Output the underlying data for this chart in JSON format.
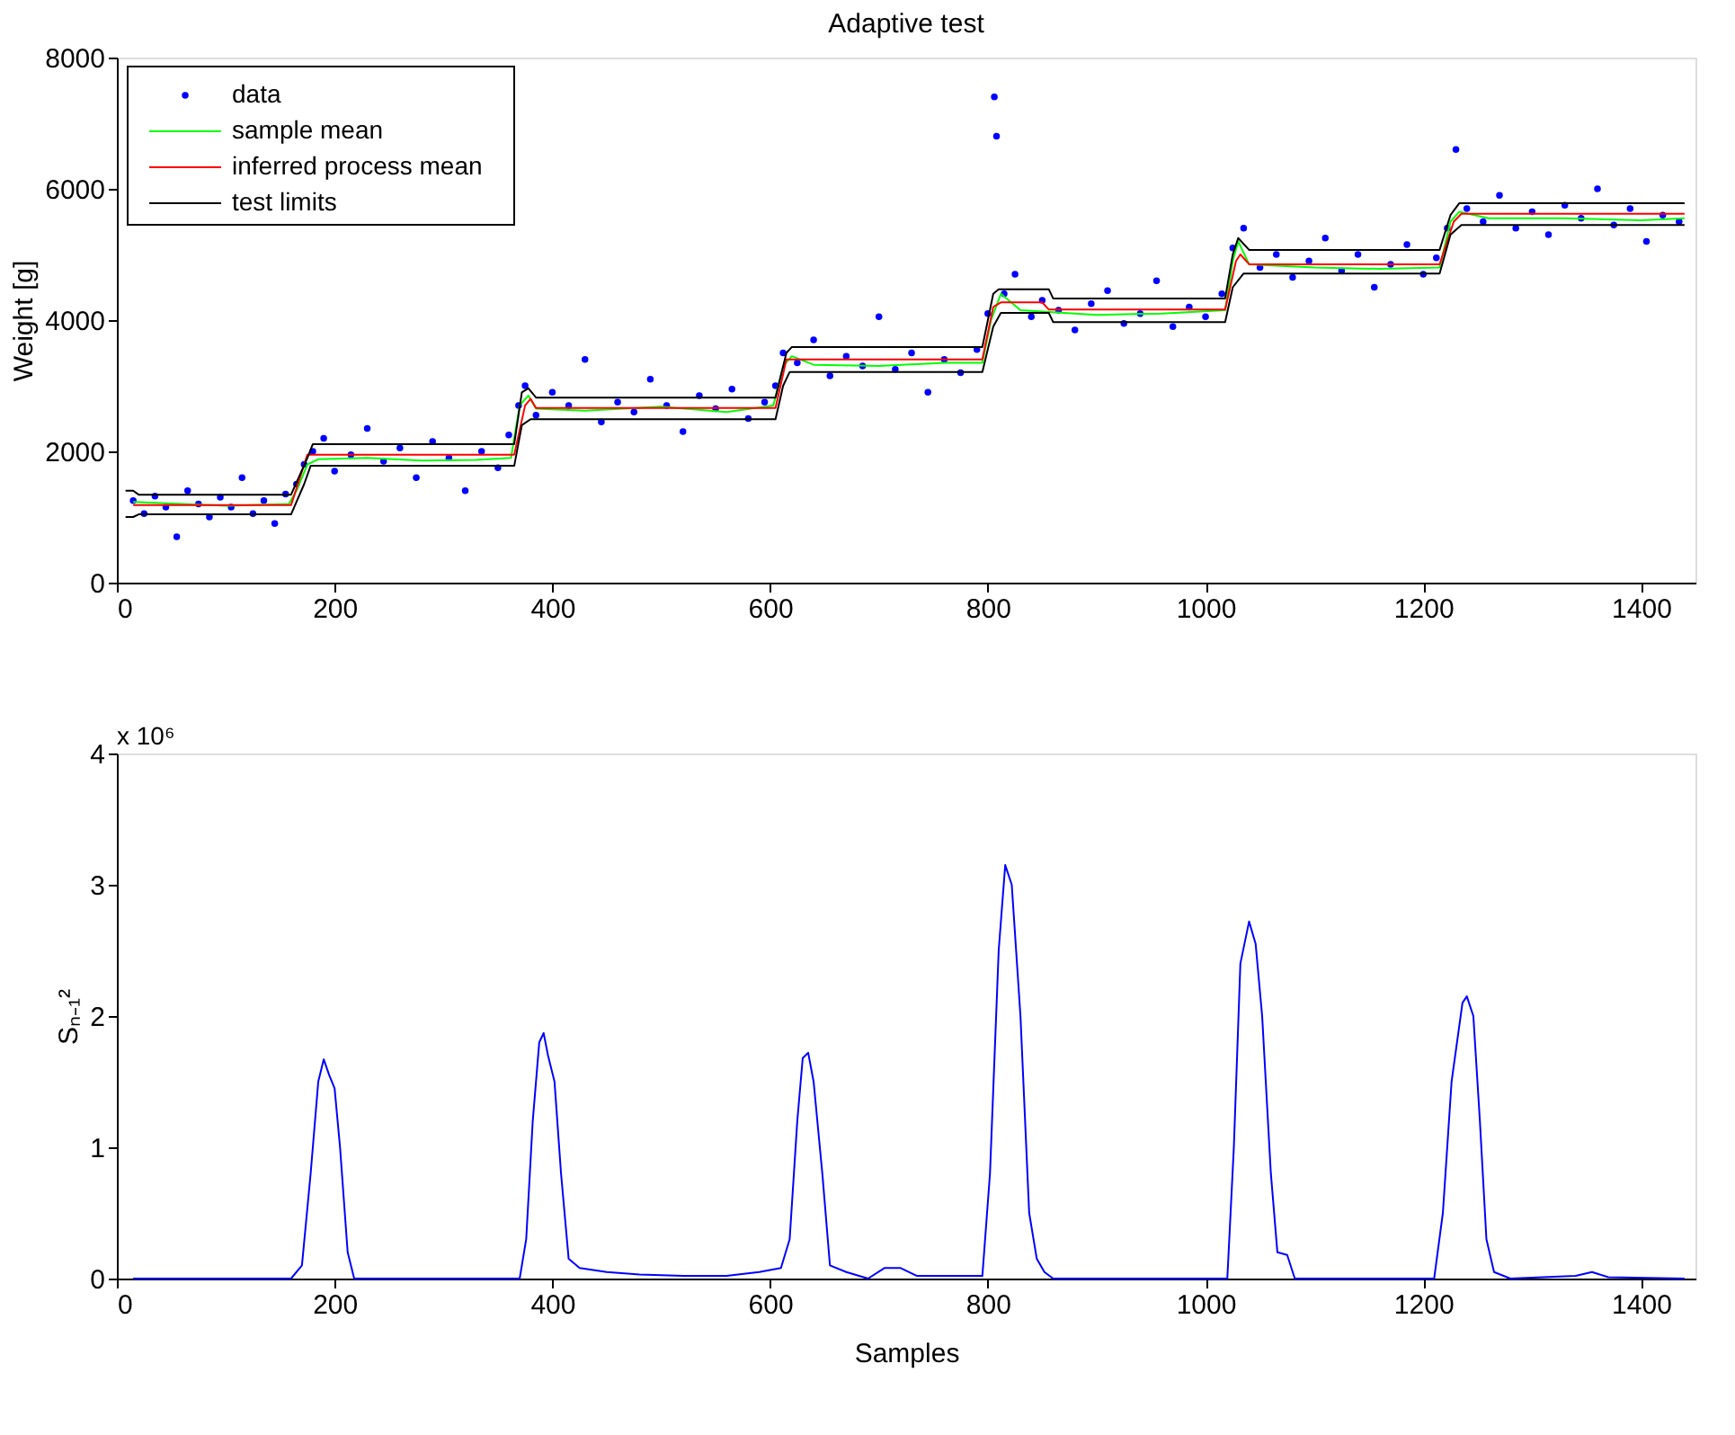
{
  "chart_data": [
    {
      "type": "line",
      "title": "Adaptive test",
      "ylabel": "Weight [g]",
      "xlim": [
        0,
        1450
      ],
      "xticks": [
        0,
        200,
        400,
        600,
        800,
        1000,
        1200,
        1400
      ],
      "ylim": [
        0,
        8000
      ],
      "yticks": [
        0,
        2000,
        4000,
        6000,
        8000
      ],
      "grid": false,
      "legend": "top left",
      "series": [
        {
          "name": "data",
          "type": "scatter",
          "color": "#0000ff",
          "x": [
            15,
            25,
            35,
            45,
            55,
            65,
            75,
            85,
            95,
            105,
            115,
            125,
            135,
            145,
            155,
            165,
            172,
            180,
            190,
            200,
            215,
            230,
            245,
            260,
            275,
            290,
            305,
            320,
            335,
            350,
            360,
            369,
            375,
            385,
            400,
            415,
            430,
            445,
            460,
            475,
            490,
            505,
            520,
            535,
            550,
            565,
            580,
            595,
            605,
            612,
            625,
            640,
            655,
            670,
            685,
            700,
            715,
            730,
            745,
            760,
            775,
            790,
            800,
            806,
            808,
            815,
            825,
            840,
            850,
            865,
            880,
            895,
            910,
            925,
            940,
            955,
            970,
            985,
            1000,
            1015,
            1025,
            1035,
            1050,
            1065,
            1080,
            1095,
            1110,
            1125,
            1140,
            1155,
            1170,
            1185,
            1200,
            1212,
            1222,
            1230,
            1240,
            1255,
            1270,
            1285,
            1300,
            1315,
            1330,
            1345,
            1360,
            1375,
            1390,
            1405,
            1420,
            1435
          ],
          "values": [
            1250,
            1050,
            1320,
            1150,
            700,
            1400,
            1200,
            1000,
            1300,
            1150,
            1600,
            1050,
            1250,
            900,
            1350,
            1500,
            1800,
            2000,
            2200,
            1700,
            1950,
            2350,
            1850,
            2050,
            1600,
            2150,
            1900,
            1400,
            2000,
            1750,
            2250,
            2700,
            3000,
            2550,
            2900,
            2700,
            3400,
            2450,
            2750,
            2600,
            3100,
            2700,
            2300,
            2850,
            2650,
            2950,
            2500,
            2750,
            3000,
            3500,
            3350,
            3700,
            3150,
            3450,
            3300,
            4050,
            3250,
            3500,
            2900,
            3400,
            3200,
            3550,
            4100,
            7400,
            6800,
            4400,
            4700,
            4050,
            4300,
            4150,
            3850,
            4250,
            4450,
            3950,
            4100,
            4600,
            3900,
            4200,
            4050,
            4400,
            5100,
            5400,
            4800,
            5000,
            4650,
            4900,
            5250,
            4750,
            5000,
            4500,
            4850,
            5150,
            4700,
            4950,
            5400,
            6600,
            5700,
            5500,
            5900,
            5400,
            5650,
            5300,
            5750,
            5550,
            6000,
            5450,
            5700,
            5200,
            5600,
            5500
          ]
        },
        {
          "name": "sample mean",
          "color": "#00ff00",
          "x": [
            15,
            60,
            100,
            158,
            165,
            175,
            185,
            230,
            280,
            330,
            362,
            370,
            378,
            385,
            430,
            500,
            560,
            603,
            612,
            620,
            640,
            700,
            760,
            795,
            803,
            812,
            830,
            900,
            960,
            1018,
            1025,
            1030,
            1040,
            1100,
            1160,
            1215,
            1225,
            1233,
            1260,
            1330,
            1400,
            1440
          ],
          "values": [
            1230,
            1200,
            1170,
            1200,
            1400,
            1800,
            1880,
            1900,
            1860,
            1870,
            1900,
            2700,
            2850,
            2650,
            2620,
            2680,
            2600,
            2700,
            3300,
            3450,
            3320,
            3300,
            3350,
            3350,
            4000,
            4400,
            4150,
            4080,
            4100,
            4150,
            4900,
            5200,
            4850,
            4800,
            4780,
            4800,
            5500,
            5650,
            5550,
            5550,
            5520,
            5550
          ]
        },
        {
          "name": "inferred process mean",
          "color": "#ff0000",
          "x": [
            15,
            160,
            175,
            365,
            375,
            380,
            385,
            605,
            615,
            795,
            805,
            812,
            850,
            856,
            1018,
            1028,
            1032,
            1040,
            1215,
            1228,
            1235,
            1440
          ],
          "values": [
            1180,
            1180,
            1950,
            1950,
            2700,
            2800,
            2660,
            2660,
            3400,
            3400,
            4200,
            4270,
            4270,
            4160,
            4160,
            4900,
            5000,
            4850,
            4850,
            5500,
            5620,
            5620
          ]
        },
        {
          "name": "test limits",
          "color": "#000000",
          "x": [
            8,
            15,
            20,
            160,
            175,
            180,
            365,
            372,
            378,
            385,
            605,
            615,
            620,
            795,
            805,
            810,
            856,
            860,
            1018,
            1025,
            1030,
            1040,
            1215,
            1225,
            1233,
            1440
          ],
          "values": [
            1400,
            1400,
            1340,
            1340,
            1900,
            2110,
            2110,
            2900,
            2960,
            2820,
            2820,
            3500,
            3590,
            3590,
            4400,
            4470,
            4470,
            4330,
            4330,
            5000,
            5250,
            5070,
            5070,
            5600,
            5780,
            5780
          ]
        },
        {
          "color": "#000000",
          "x": [
            8,
            15,
            20,
            160,
            172,
            178,
            365,
            372,
            380,
            605,
            612,
            618,
            795,
            805,
            812,
            856,
            860,
            1018,
            1025,
            1035,
            1215,
            1225,
            1235,
            1440
          ],
          "values": [
            1000,
            1000,
            1040,
            1040,
            1500,
            1780,
            1780,
            2400,
            2490,
            2490,
            3000,
            3210,
            3210,
            3900,
            4110,
            4110,
            3970,
            3970,
            4500,
            4710,
            4710,
            5300,
            5450,
            5450
          ]
        }
      ]
    },
    {
      "type": "line",
      "xlabel": "Samples",
      "ylabel": "Sₙ₋₁²",
      "annotations": [
        "x 10⁶"
      ],
      "xlim": [
        0,
        1450
      ],
      "xticks": [
        0,
        200,
        400,
        600,
        800,
        1000,
        1200,
        1400
      ],
      "ylim": [
        0,
        4
      ],
      "yticks": [
        0,
        1,
        2,
        3,
        4
      ],
      "grid": false,
      "series": [
        {
          "color": "#0000ff",
          "x": [
            15,
            160,
            170,
            178,
            185,
            190,
            195,
            200,
            205,
            212,
            218,
            370,
            376,
            382,
            388,
            392,
            396,
            402,
            408,
            415,
            425,
            450,
            480,
            520,
            560,
            590,
            610,
            618,
            625,
            630,
            635,
            640,
            648,
            655,
            670,
            690,
            705,
            720,
            735,
            775,
            795,
            802,
            810,
            816,
            822,
            830,
            838,
            845,
            852,
            860,
            1020,
            1026,
            1032,
            1040,
            1046,
            1052,
            1060,
            1066,
            1075,
            1082,
            1210,
            1218,
            1226,
            1236,
            1240,
            1246,
            1252,
            1258,
            1265,
            1280,
            1340,
            1355,
            1370,
            1440
          ],
          "values": [
            0,
            0,
            0.1,
            0.8,
            1.5,
            1.67,
            1.55,
            1.45,
            1.0,
            0.2,
            0,
            0,
            0.3,
            1.2,
            1.8,
            1.87,
            1.7,
            1.5,
            0.8,
            0.15,
            0.08,
            0.05,
            0.03,
            0.02,
            0.02,
            0.05,
            0.08,
            0.3,
            1.2,
            1.68,
            1.72,
            1.5,
            0.8,
            0.1,
            0.05,
            0,
            0.08,
            0.08,
            0.02,
            0.02,
            0.02,
            0.8,
            2.5,
            3.15,
            3.0,
            2.0,
            0.5,
            0.15,
            0.05,
            0,
            0,
            1.0,
            2.4,
            2.72,
            2.55,
            2.0,
            0.8,
            0.2,
            0.18,
            0,
            0,
            0.5,
            1.5,
            2.1,
            2.15,
            2.0,
            1.2,
            0.3,
            0.05,
            0,
            0.02,
            0.05,
            0.01,
            0
          ]
        }
      ]
    }
  ]
}
